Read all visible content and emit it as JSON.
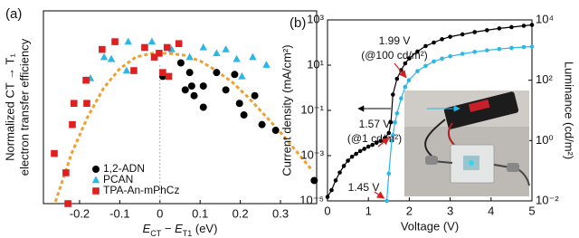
{
  "chart_data": [
    {
      "type": "scatter",
      "panel_label": "(a)",
      "ylabel": [
        "Normalized CT → T₁",
        "electron transfer efficiency"
      ],
      "xlabel": [
        {
          "text": "E",
          "italic": true
        },
        {
          "text": "CT",
          "sub": true
        },
        {
          "text": " − "
        },
        {
          "text": "E",
          "italic": true
        },
        {
          "text": "T1",
          "sub": true
        },
        {
          "text": " (eV)"
        }
      ],
      "xlim": [
        -0.29,
        0.39
      ],
      "ylim": [
        0,
        1
      ],
      "xticks": [
        -0.2,
        -0.1,
        0,
        0.1,
        0.2,
        0.3
      ],
      "vline": 0,
      "legend": "lower left",
      "series": [
        {
          "name": "1,2-ADN",
          "color": "#000000",
          "marker": "circle",
          "x": [
            0.007,
            0.052,
            0.074,
            0.079,
            0.108,
            0.063,
            0.085,
            0.141,
            0.164,
            0.186,
            0.198,
            0.209,
            0.236,
            0.254,
            0.288,
            0.384,
            0.108
          ],
          "values": [
            0.66,
            0.73,
            0.68,
            0.61,
            0.61,
            0.59,
            0.56,
            0.68,
            0.59,
            0.67,
            0.52,
            0.46,
            0.56,
            0.41,
            0.38,
            0.12,
            0.5
          ]
        },
        {
          "name": "PCAN",
          "color": "#29b6e8",
          "marker": "triangle",
          "x": [
            -0.184,
            -0.173,
            -0.139,
            -0.121,
            -0.083,
            -0.079,
            -0.02,
            0.029,
            0.074,
            0.108,
            0.141,
            0.164,
            0.191,
            0.231,
            0.265,
            0.204
          ],
          "values": [
            0.64,
            0.65,
            0.76,
            0.75,
            0.69,
            0.84,
            0.84,
            0.8,
            0.76,
            0.81,
            0.78,
            0.8,
            0.75,
            0.76,
            0.72,
            0.66
          ]
        },
        {
          "name": "TPA-An-mPhCz",
          "color": "#e02020",
          "marker": "square",
          "x": [
            -0.263,
            -0.234,
            -0.229,
            -0.218,
            -0.214,
            -0.184,
            -0.182,
            -0.144,
            -0.112,
            -0.065,
            -0.038,
            -0.014,
            -0.002,
            0.007,
            0.018,
            0.047,
            0.022
          ],
          "values": [
            0.26,
            0.16,
            0,
            0.41,
            0.52,
            0.64,
            0.52,
            0.8,
            0.84,
            0.69,
            0.81,
            0.76,
            0.78,
            0.68,
            0.81,
            0.83,
            0.66
          ]
        }
      ],
      "fit": {
        "color": "#f0a030",
        "dashed": true,
        "x": [
          -0.26,
          -0.22,
          -0.18,
          -0.14,
          -0.1,
          -0.06,
          -0.02,
          0.02,
          0.06,
          0.1,
          0.14,
          0.18,
          0.22,
          0.26,
          0.3,
          0.34,
          0.38
        ],
        "values": [
          0.01,
          0.26,
          0.45,
          0.6,
          0.7,
          0.76,
          0.78,
          0.78,
          0.77,
          0.74,
          0.69,
          0.63,
          0.55,
          0.46,
          0.37,
          0.27,
          0.17
        ]
      }
    },
    {
      "type": "line",
      "panel_label": "(b)",
      "xlabel": "Voltage (V)",
      "ylabel": "Current density (mA/cm²)",
      "y2label": "Luminance (cd/m²)",
      "xlim": [
        0,
        5
      ],
      "xticks": [
        0,
        1,
        2,
        3,
        4,
        5
      ],
      "ylim": [
        1e-05,
        1000
      ],
      "yscale": "log",
      "yticks": [
        {
          "value": 1000,
          "label": "10³"
        },
        {
          "value": 10,
          "label": "10¹"
        },
        {
          "value": 0.1,
          "label": "10⁻¹"
        },
        {
          "value": 0.001,
          "label": "10⁻³"
        },
        {
          "value": 1e-05,
          "label": "10⁻⁵"
        }
      ],
      "y2lim": [
        0.01,
        10000
      ],
      "y2scale": "log",
      "y2ticks": [
        {
          "value": 10000,
          "label": "10⁴"
        },
        {
          "value": 100,
          "label": "10²"
        },
        {
          "value": 1,
          "label": "10⁰"
        },
        {
          "value": 0.01,
          "label": "10⁻²"
        }
      ],
      "series": [
        {
          "color": "#000000",
          "x": [
            0,
            0.1,
            0.2,
            0.3,
            0.4,
            0.5,
            0.6,
            0.7,
            0.8,
            0.9,
            1.0,
            1.1,
            1.2,
            1.3,
            1.4,
            1.5,
            1.55,
            1.6,
            1.7,
            1.8,
            1.9,
            2.0,
            2.2,
            2.4,
            2.6,
            2.8,
            3.0,
            3.3,
            3.6,
            3.9,
            4.2,
            4.5,
            4.8,
            5.0
          ],
          "values": [
            1.5e-05,
            3e-05,
            8e-05,
            0.00018,
            0.00035,
            0.0006,
            0.0009,
            0.0012,
            0.0016,
            0.002,
            0.0025,
            0.003,
            0.0037,
            0.0045,
            0.006,
            0.01,
            0.03,
            0.5,
            2.5,
            6,
            12,
            20,
            40,
            70,
            100,
            140,
            180,
            230,
            290,
            350,
            420,
            480,
            550,
            600
          ]
        },
        {
          "color": "#29b6e8",
          "axis": "y2",
          "x": [
            1.45,
            1.5,
            1.57,
            1.6,
            1.65,
            1.7,
            1.8,
            1.9,
            1.99,
            2.2,
            2.4,
            2.6,
            2.8,
            3.0,
            3.3,
            3.6,
            3.9,
            4.2,
            4.5,
            4.8,
            5.0
          ],
          "values": [
            0.01,
            0.08,
            1,
            1.5,
            4,
            8,
            25,
            60,
            100,
            200,
            300,
            420,
            520,
            620,
            750,
            870,
            980,
            1080,
            1180,
            1260,
            1300
          ]
        }
      ],
      "annotation_color": "#d62020",
      "annotations": [
        "1.99 V",
        "(@100 cd/m²)",
        "1.57 V",
        "(@1 cd/m²)",
        "1.45 V"
      ]
    }
  ]
}
